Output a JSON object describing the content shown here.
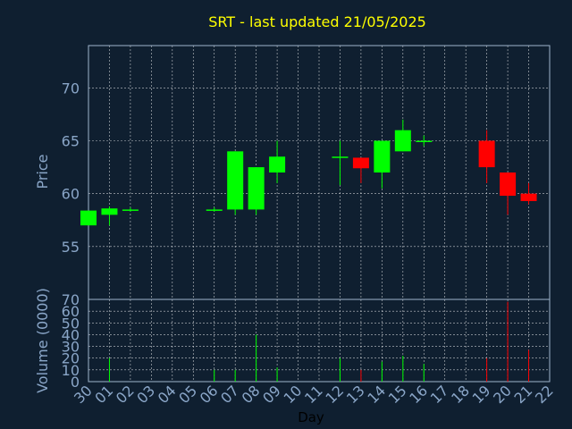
{
  "chart_data": {
    "type": "candlestick",
    "title": "SRT - last updated 21/05/2025",
    "xlabel": "Day",
    "x_ticks": [
      "30",
      "01",
      "02",
      "03",
      "04",
      "05",
      "06",
      "07",
      "08",
      "09",
      "10",
      "11",
      "12",
      "13",
      "14",
      "15",
      "16",
      "17",
      "18",
      "19",
      "20",
      "21",
      "22"
    ],
    "price_panel": {
      "ylabel": "Price",
      "ylim": [
        50,
        74
      ],
      "y_ticks": [
        55,
        60,
        65,
        70
      ],
      "candles": [
        {
          "day": "30",
          "open": 57.0,
          "high": 58.4,
          "low": 57.0,
          "close": 58.4
        },
        {
          "day": "01",
          "open": 58.0,
          "high": 58.8,
          "low": 57.0,
          "close": 58.6
        },
        {
          "day": "02",
          "open": 58.5,
          "high": 58.7,
          "low": 58.3,
          "close": 58.5
        },
        {
          "day": "06",
          "open": 58.5,
          "high": 58.7,
          "low": 58.3,
          "close": 58.5
        },
        {
          "day": "07",
          "open": 58.5,
          "high": 64.0,
          "low": 58.0,
          "close": 64.0
        },
        {
          "day": "08",
          "open": 58.5,
          "high": 62.5,
          "low": 58.0,
          "close": 62.5
        },
        {
          "day": "09",
          "open": 62.0,
          "high": 65.0,
          "low": 61.0,
          "close": 63.5
        },
        {
          "day": "12",
          "open": 63.5,
          "high": 65.0,
          "low": 60.8,
          "close": 63.5
        },
        {
          "day": "13",
          "open": 63.4,
          "high": 63.4,
          "low": 61.0,
          "close": 62.4
        },
        {
          "day": "14",
          "open": 62.0,
          "high": 65.0,
          "low": 60.5,
          "close": 65.0
        },
        {
          "day": "15",
          "open": 64.0,
          "high": 67.0,
          "low": 64.0,
          "close": 66.0
        },
        {
          "day": "16",
          "open": 65.0,
          "high": 65.5,
          "low": 64.5,
          "close": 65.0
        },
        {
          "day": "19",
          "open": 65.0,
          "high": 66.0,
          "low": 61.0,
          "close": 62.5
        },
        {
          "day": "20",
          "open": 62.0,
          "high": 62.0,
          "low": 58.0,
          "close": 59.8
        },
        {
          "day": "21",
          "open": 60.0,
          "high": 61.0,
          "low": 59.0,
          "close": 59.3
        }
      ]
    },
    "volume_panel": {
      "ylabel": "Volume (0000)",
      "ylim": [
        0,
        70
      ],
      "y_ticks": [
        0,
        10,
        20,
        30,
        40,
        50,
        60,
        70
      ],
      "volumes": [
        {
          "day": "01",
          "value": 20
        },
        {
          "day": "06",
          "value": 10
        },
        {
          "day": "07",
          "value": 10
        },
        {
          "day": "08",
          "value": 40
        },
        {
          "day": "09",
          "value": 12
        },
        {
          "day": "12",
          "value": 20
        },
        {
          "day": "13",
          "value": 10
        },
        {
          "day": "14",
          "value": 17
        },
        {
          "day": "15",
          "value": 22
        },
        {
          "day": "16",
          "value": 15
        },
        {
          "day": "19",
          "value": 20
        },
        {
          "day": "20",
          "value": 68
        },
        {
          "day": "21",
          "value": 27
        }
      ]
    },
    "grid": true,
    "colors": {
      "background": "#0f1f30",
      "up": "#00ff00",
      "down": "#ff0000",
      "title": "#ffff00",
      "axis_text": "#8aa6c8",
      "grid": "#ffffff"
    }
  }
}
